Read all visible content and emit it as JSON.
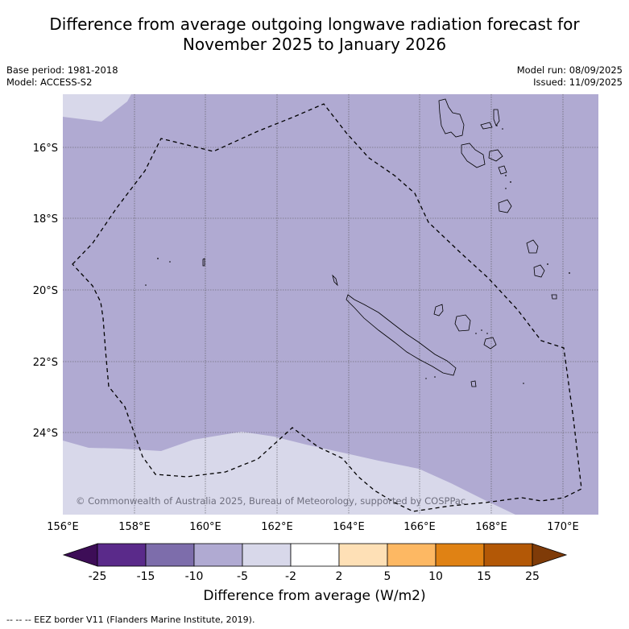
{
  "title_line1": "Difference from average outgoing longwave radiation forecast for",
  "title_line2": "November 2025 to January 2026",
  "base_period": "Base period: 1981-2018",
  "model": "Model: ACCESS-S2",
  "model_run": "Model run: 08/09/2025",
  "issued": "Issued: 11/09/2025",
  "copyright": "© Commonwealth of Australia 2025, Bureau of Meteorology, supported by COSPPac",
  "lon_ticks": [
    "156°E",
    "158°E",
    "160°E",
    "162°E",
    "164°E",
    "166°E",
    "168°E",
    "170°E"
  ],
  "lat_ticks": [
    "16°S",
    "18°S",
    "20°S",
    "22°S",
    "24°S"
  ],
  "colorbar": {
    "title": "Difference from average (W/m2)",
    "tick_labels": [
      "-25",
      "-15",
      "-10",
      "-5",
      "-2",
      "2",
      "5",
      "10",
      "15",
      "25"
    ],
    "colors": [
      "#3d0d57",
      "#5a2a8a",
      "#7d6dab",
      "#b0aad2",
      "#d8d8ea",
      "#ffffff",
      "#fee0b6",
      "#fdb863",
      "#e08214",
      "#b35806",
      "#7f3b08"
    ]
  },
  "map_colors": {
    "main_fill": "#b0aad2",
    "light_fill": "#d8d8ea"
  },
  "footnote": "--  --  -- EEZ border V11 (Flanders Marine Institute, 2019)."
}
